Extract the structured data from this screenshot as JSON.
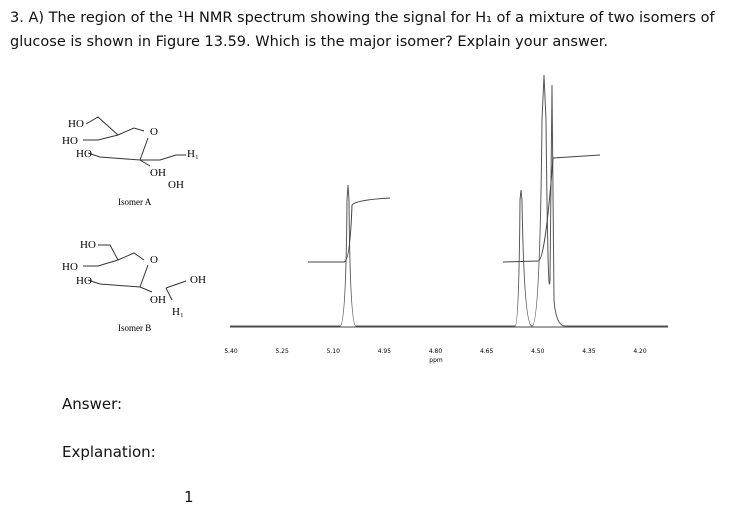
{
  "question": {
    "text": "3.  A) The region of the ¹H NMR spectrum showing the signal for H₁ of a mixture of two isomers of glucose is shown in Figure 13.59. Which is the major isomer?  Explain your answer."
  },
  "figure": {
    "isomers": [
      {
        "name": "Isomer A",
        "labels": [
          "HO",
          "HO",
          "HO",
          "O",
          "OH",
          "OH",
          "H₁"
        ]
      },
      {
        "name": "Isomer B",
        "labels": [
          "HO",
          "HO",
          "HO",
          "O",
          "OH",
          "H₁",
          "OH"
        ]
      }
    ],
    "spectrum": {
      "ticks": [
        "5.40",
        "5.25",
        "5.10",
        "4.95",
        "4.80",
        "4.65",
        "4.50",
        "4.35",
        "4.20"
      ],
      "axis_label": "ppm"
    }
  },
  "answer": {
    "answer_label": "Answer:",
    "explanation_label": "Explanation:",
    "page_number": "1"
  }
}
